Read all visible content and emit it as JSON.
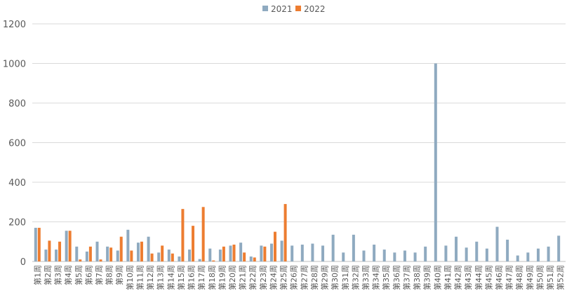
{
  "chart_data": {
    "type": "bar",
    "title": "",
    "xlabel": "",
    "ylabel": "",
    "ylim": [
      0,
      1200
    ],
    "yticks": [
      0,
      200,
      400,
      600,
      800,
      1000,
      1200
    ],
    "grid": true,
    "legend_position": "top",
    "categories": [
      "第1周",
      "第2周",
      "第3周",
      "第4周",
      "第5周",
      "第6周",
      "第7周",
      "第8周",
      "第9周",
      "第10周",
      "第11周",
      "第12周",
      "第13周",
      "第14周",
      "第15周",
      "第16周",
      "第17周",
      "第18周",
      "第19周",
      "第20周",
      "第21周",
      "第22周",
      "第23周",
      "第24周",
      "第25周",
      "第26周",
      "第27周",
      "第28周",
      "第29周",
      "第30周",
      "第31周",
      "第32周",
      "第33周",
      "第34周",
      "第35周",
      "第36周",
      "第37周",
      "第38周",
      "第39周",
      "第40周",
      "第41周",
      "第42周",
      "第43周",
      "第44周",
      "第45周",
      "第46周",
      "第47周",
      "第48周",
      "第49周",
      "第50周",
      "第51周",
      "第52周"
    ],
    "series": [
      {
        "name": "2021",
        "color": "#8faac0",
        "values": [
          170,
          60,
          60,
          155,
          75,
          50,
          100,
          75,
          55,
          160,
          95,
          125,
          45,
          60,
          25,
          60,
          12,
          65,
          60,
          80,
          95,
          25,
          80,
          90,
          105,
          80,
          85,
          90,
          80,
          135,
          45,
          135,
          55,
          85,
          60,
          45,
          55,
          45,
          75,
          1000,
          80,
          125,
          70,
          100,
          65,
          175,
          110,
          30,
          45,
          65,
          75,
          130
        ]
      },
      {
        "name": "2022",
        "color": "#ed7d31",
        "values": [
          170,
          105,
          100,
          155,
          10,
          75,
          10,
          70,
          125,
          55,
          100,
          40,
          80,
          40,
          265,
          180,
          275,
          5,
          75,
          85,
          45,
          20,
          75,
          150,
          290,
          null,
          null,
          null,
          null,
          null,
          null,
          null,
          null,
          null,
          null,
          null,
          null,
          null,
          null,
          null,
          null,
          null,
          null,
          null,
          null,
          null,
          null,
          null,
          null,
          null,
          null,
          null
        ]
      }
    ]
  }
}
